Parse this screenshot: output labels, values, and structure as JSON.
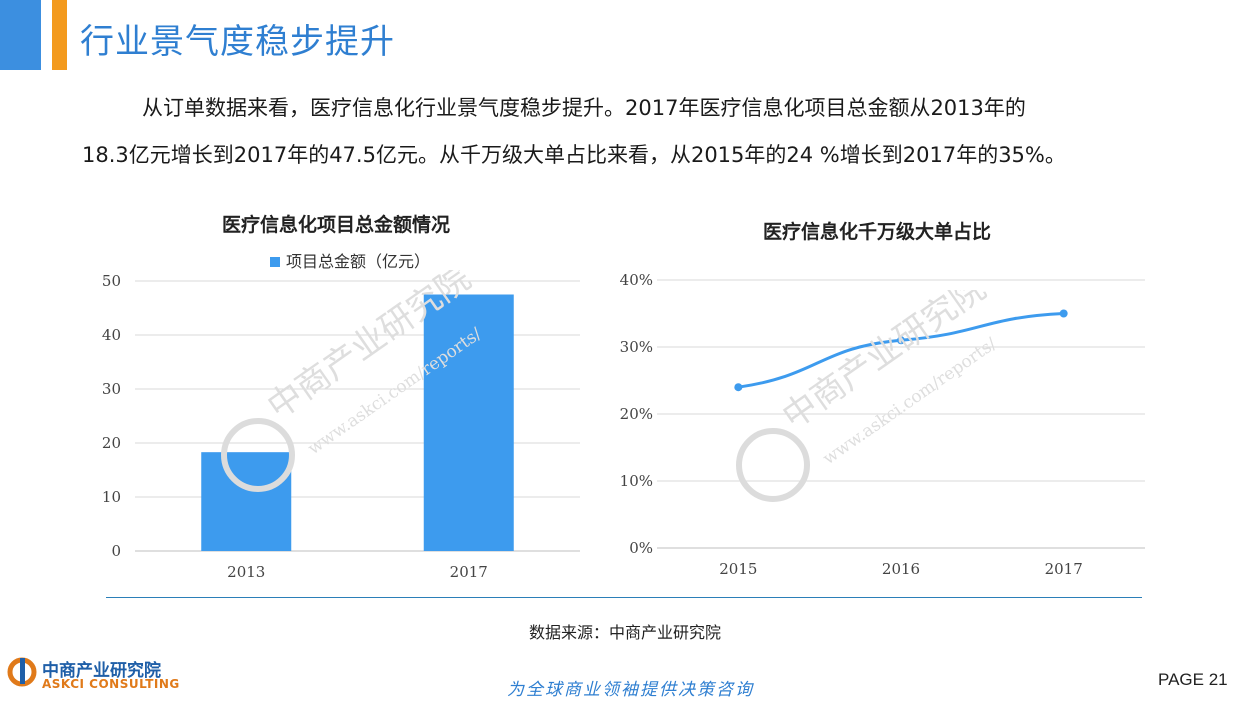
{
  "page": {
    "title": "行业景气度稳步提升",
    "paragraph_line1": "从订单数据来看，医疗信息化行业景气度稳步提升。2017年医疗信息化项目总金额从2013年的",
    "paragraph_line2": "18.3亿元增长到2017年的47.5亿元。从千万级大单占比来看，从2015年的24 %增长到2017年的35%。",
    "source": "数据来源：中商产业研究院",
    "slogan": "为全球商业领袖提供决策咨询",
    "page_number": "PAGE  21",
    "logo_cn": "中商产业研究院",
    "logo_en": "ASKCI CONSULTING",
    "watermark_cn": "中商产业研究院",
    "watermark_url": "www.askci.com/reports/"
  },
  "colors": {
    "accent_blue": "#3c8fe0",
    "accent_orange": "#f39a1e",
    "bar": "#3d9bee",
    "line": "#3d9bee"
  },
  "chart_data": [
    {
      "type": "bar",
      "title": "医疗信息化项目总金额情况",
      "categories": [
        "2013",
        "2017"
      ],
      "series": [
        {
          "name": "项目总金额（亿元）",
          "values": [
            18.3,
            47.5
          ]
        }
      ],
      "ylim": [
        0,
        50
      ],
      "yticks": [
        "0",
        "10",
        "20",
        "30",
        "40",
        "50"
      ],
      "grid": true,
      "legend": "top"
    },
    {
      "type": "line",
      "title": "医疗信息化千万级大单占比",
      "categories": [
        "2015",
        "2016",
        "2017"
      ],
      "series": [
        {
          "values": [
            24,
            31,
            35
          ]
        }
      ],
      "ylim": [
        0,
        40
      ],
      "yticks": [
        "0%",
        "10%",
        "20%",
        "30%",
        "40%"
      ],
      "grid": true
    }
  ]
}
